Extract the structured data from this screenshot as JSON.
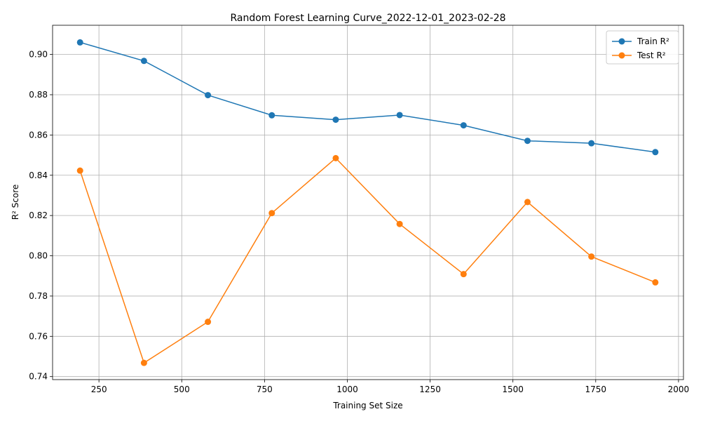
{
  "chart_data": {
    "type": "line",
    "title": "Random Forest Learning Curve_2022-12-01_2023-02-28",
    "xlabel": "Training Set Size",
    "ylabel": "R² Score",
    "xlim": [
      110,
      2015
    ],
    "ylim": [
      0.7385,
      0.9145
    ],
    "x_ticks": [
      250,
      500,
      750,
      1000,
      1250,
      1500,
      1750,
      2000
    ],
    "y_ticks": [
      0.74,
      0.76,
      0.78,
      0.8,
      0.82,
      0.84,
      0.86,
      0.88,
      0.9
    ],
    "grid": true,
    "legend_position": "top-right",
    "x": [
      193,
      386,
      579,
      772,
      965,
      1158,
      1351,
      1544,
      1737,
      1930
    ],
    "series": [
      {
        "name": "Train R²",
        "color": "#1f77b4",
        "values": [
          0.906,
          0.8968,
          0.8798,
          0.8698,
          0.8676,
          0.8699,
          0.8648,
          0.8571,
          0.8559,
          0.8515
        ]
      },
      {
        "name": "Test R²",
        "color": "#ff7f0e",
        "values": [
          0.8423,
          0.7468,
          0.7672,
          0.8212,
          0.8485,
          0.8158,
          0.7909,
          0.8267,
          0.7996,
          0.7868
        ]
      }
    ]
  }
}
